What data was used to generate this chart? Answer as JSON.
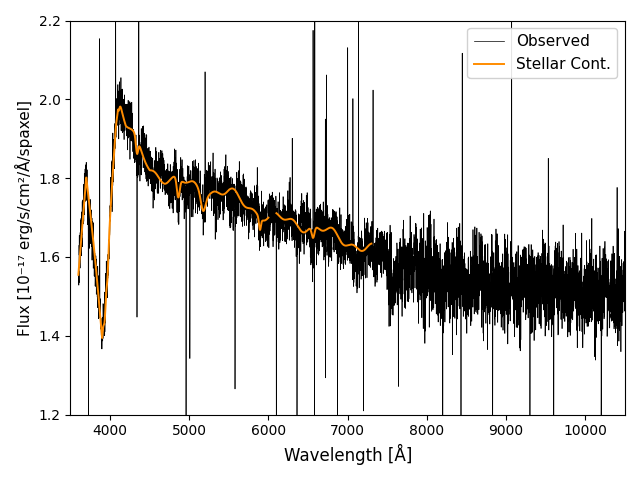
{
  "title": "",
  "xlabel": "Wavelength [Å]",
  "ylabel": "Flux [10⁻¹⁷ erg/s/cm²/Å/spaxel]",
  "xlim": [
    3500,
    10500
  ],
  "ylim": [
    1.2,
    2.2
  ],
  "yticks": [
    1.2,
    1.4,
    1.6,
    1.8,
    2.0,
    2.2
  ],
  "xticks": [
    4000,
    5000,
    6000,
    7000,
    8000,
    9000,
    10000
  ],
  "observed_color": "#000000",
  "stellar_color": "#ff8c00",
  "observed_label": "Observed",
  "stellar_label": "Stellar Cont.",
  "observed_lw": 0.5,
  "stellar_lw": 1.4,
  "figsize": [
    6.4,
    4.8
  ],
  "dpi": 100
}
